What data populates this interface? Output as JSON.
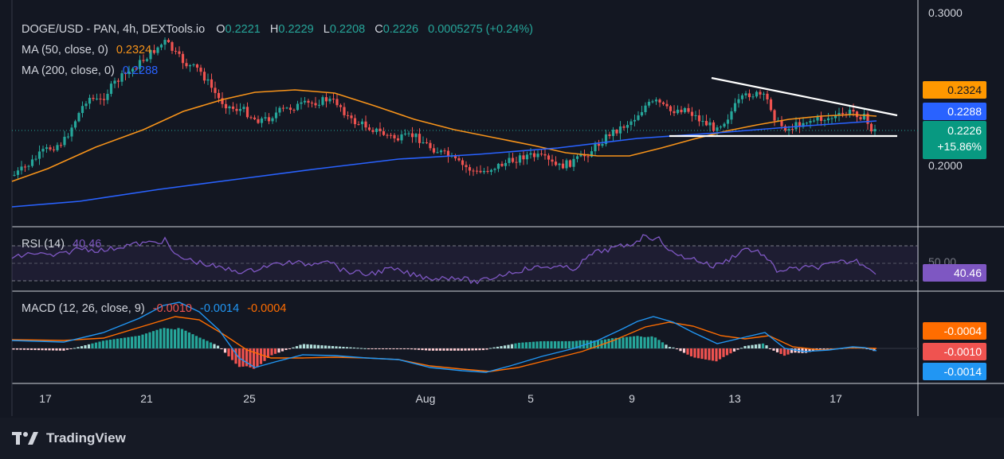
{
  "legend": {
    "symbol": "DOGE/USD - PAN, 4h, DEXTools.io",
    "o_label": "O",
    "o": "0.2221",
    "h_label": "H",
    "h": "0.2229",
    "l_label": "L",
    "l": "0.2208",
    "c_label": "C",
    "c": "0.2226",
    "change": "0.0005275 (+0.24%)",
    "ma50_label": "MA (50, close, 0)",
    "ma50_value": "0.2324",
    "ma200_label": "MA (200, close, 0)",
    "ma200_value": "0.2288",
    "rsi_label": "RSI (14)",
    "rsi_value": "40.46",
    "macd_label": "MACD (12, 26, close, 9)",
    "macd_hist_value": "-0.0010",
    "macd_line_value": "-0.0014",
    "macd_signal_value": "-0.0004"
  },
  "price_axis": {
    "top_tick": "0.3000",
    "mid_tick": "0.2000"
  },
  "price_labels": {
    "ma50": "0.2324",
    "ma200": "0.2288",
    "last": "0.2226",
    "last_change": "+15.86%"
  },
  "rsi_axis": {
    "tick": "50.00",
    "value": "40.46"
  },
  "macd_labels": {
    "signal": "-0.0004",
    "hist": "-0.0010",
    "macd": "-0.0014"
  },
  "time_axis": [
    "17",
    "21",
    "25",
    "Aug",
    "5",
    "9",
    "13",
    "17"
  ],
  "brand": {
    "name": "TradingView"
  },
  "colors": {
    "up": "#26a69a",
    "down": "#ef5350",
    "ma50": "#f7931a",
    "ma200": "#2962ff",
    "rsi": "#7e57c2",
    "macd": "#2196f3",
    "signal": "#ff6d00",
    "trendline": "#ffffff"
  },
  "chart_data": {
    "type": "line",
    "title": "DOGE/USD - PAN, 4h, DEXTools.io",
    "series": [
      {
        "name": "MA (50, close, 0)",
        "last": 0.2324
      },
      {
        "name": "MA (200, close, 0)",
        "last": 0.2288
      },
      {
        "name": "RSI (14)",
        "last": 40.46
      },
      {
        "name": "MACD (12, 26, close, 9)",
        "histogram": -0.001,
        "macd": -0.0014,
        "signal": -0.0004
      }
    ],
    "ohlc_last": {
      "open": 0.2221,
      "high": 0.2229,
      "low": 0.2208,
      "close": 0.2226
    },
    "x_ticks": [
      "17",
      "21",
      "25",
      "Aug",
      "5",
      "9",
      "13",
      "17"
    ],
    "y_ticks": [
      0.2,
      0.3
    ],
    "ylim": [
      0.16,
      0.3
    ],
    "grid": false
  }
}
